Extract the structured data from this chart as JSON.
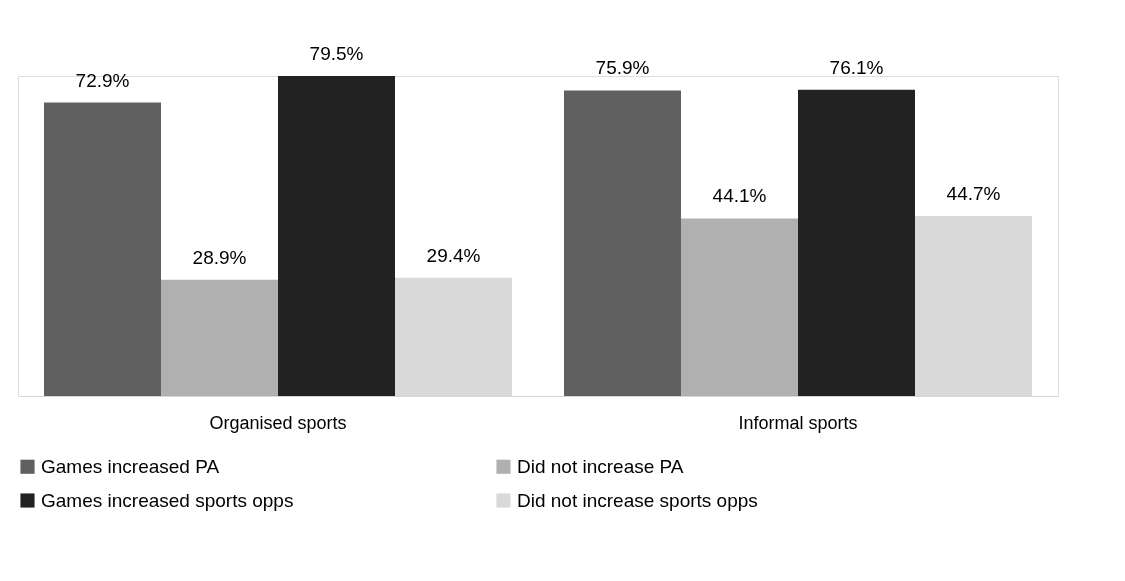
{
  "chart_data": {
    "type": "bar",
    "categories": [
      "Organised sports",
      "Informal sports"
    ],
    "series": [
      {
        "name": "Games increased PA",
        "color": "#606060",
        "values": [
          72.9,
          75.9
        ],
        "value_labels": [
          "72.9%",
          "75.9%"
        ]
      },
      {
        "name": "Did not increase PA",
        "color": "#b0b0b0",
        "values": [
          28.9,
          44.1
        ],
        "value_labels": [
          "28.9%",
          "44.1%"
        ]
      },
      {
        "name": "Games increased sports opps",
        "color": "#222222",
        "values": [
          79.5,
          76.1
        ],
        "value_labels": [
          "79.5%",
          "76.1%"
        ]
      },
      {
        "name": "Did not increase sports opps",
        "color": "#d9d9d9",
        "values": [
          29.4,
          44.7
        ],
        "value_labels": [
          "29.4%",
          "44.7%"
        ]
      }
    ],
    "legend": "bottom"
  }
}
